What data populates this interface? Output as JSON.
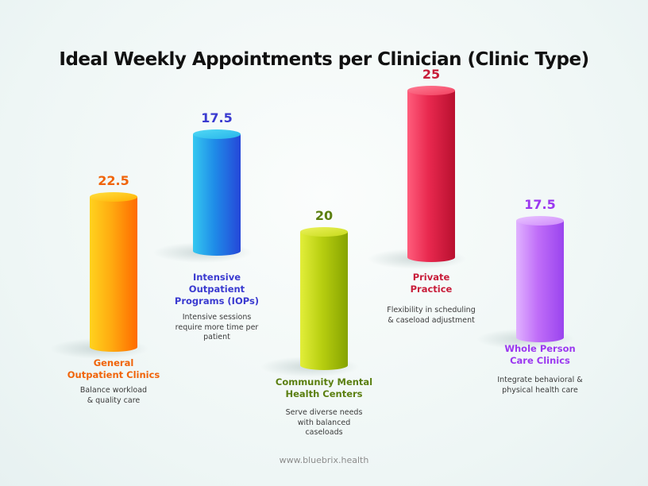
{
  "chart_data": {
    "type": "bar",
    "title": "Ideal Weekly Appointments per Clinician (Clinic Type)",
    "unit": "appointments per week",
    "categories": [
      "General Outpatient Clinics",
      "Intensive Outpatient Programs (IOPs)",
      "Community Mental Health Centers",
      "Private Practice",
      "Whole Person Care Clinics"
    ],
    "values": [
      22.5,
      17.5,
      20,
      25,
      17.5
    ],
    "value_labels": [
      "22.5",
      "17.5",
      "20",
      "25",
      "17.5"
    ],
    "label_lines": [
      [
        "General",
        "Outpatient Clinics"
      ],
      [
        "Intensive",
        "Outpatient",
        "Programs (IOPs)"
      ],
      [
        "Community Mental",
        "Health Centers"
      ],
      [
        "Private",
        "Practice"
      ],
      [
        "Whole Person",
        "Care Clinics"
      ]
    ],
    "descriptions": [
      [
        "Balance workload",
        "& quality care"
      ],
      [
        "Intensive sessions",
        "require more time per",
        "patient"
      ],
      [
        "Serve diverse needs",
        "with balanced",
        "caseloads"
      ],
      [
        "Flexibility in scheduling",
        "& caseload adjustment"
      ],
      [
        "Integrate behavioral &",
        "physical health care"
      ]
    ],
    "colors": [
      {
        "label": "#f0640a",
        "light": "#ffd21e",
        "mid": "#ffab10",
        "dark": "#ff6b00",
        "top": "#ffe040",
        "topdark": "#ffb000"
      },
      {
        "label": "#3a3ad0",
        "light": "#35c8f0",
        "mid": "#1f8ce8",
        "dark": "#2547d8",
        "top": "#52d9f5",
        "topdark": "#27b5ea"
      },
      {
        "label": "#5b7f10",
        "light": "#e2ee3a",
        "mid": "#b8cf10",
        "dark": "#86a300",
        "top": "#ecf25c",
        "topdark": "#c7da1b"
      },
      {
        "label": "#c81d3a",
        "light": "#ff5d7c",
        "mid": "#e8284e",
        "dark": "#b8102f",
        "top": "#ff7d95",
        "topdark": "#f2405f"
      },
      {
        "label": "#9b38f0",
        "light": "#e0b2ff",
        "mid": "#c06ef8",
        "dark": "#9a44ee",
        "top": "#e9c4ff",
        "topdark": "#cf8cfb"
      }
    ]
  },
  "footer": "www.bluebrix.health"
}
